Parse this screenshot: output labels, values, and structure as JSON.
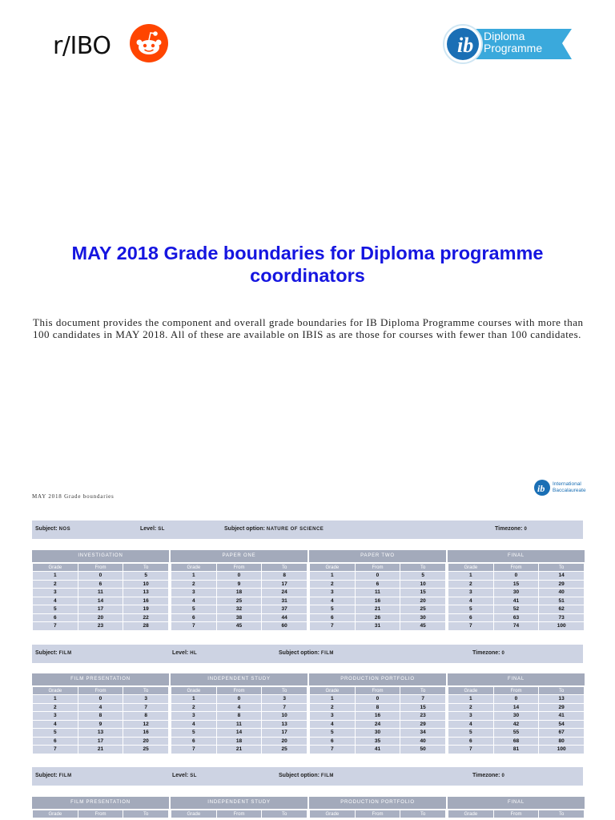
{
  "header": {
    "brand": "r/IBO",
    "brand_icon": "reddit-snoo-icon",
    "logo_text": [
      "Diploma",
      "Programme"
    ],
    "reddit_color": "#ff4500",
    "ib_color": "#1a8fc9"
  },
  "title": "MAY 2018 Grade boundaries for Diploma programme coordinators",
  "intro": "This document provides the component and overall grade boundaries for IB Diploma Programme courses with more than 100 candidates in MAY 2018. All of these are available on IBIS as  are  those for  courses with fewer than 100 candidates.",
  "page_label": "MAY 2018 Grade boundaries",
  "ib_small_logo": [
    "International",
    "Baccalaureate"
  ],
  "labels": {
    "subject": "Subject:",
    "level": "Level:",
    "option": "Subject option:",
    "timezone": "Timezone:",
    "grade": "Grade",
    "from": "From",
    "to": "To"
  },
  "blocks": [
    {
      "subject": "NOS",
      "level": "SL",
      "option": "NATURE OF SCIENCE",
      "timezone": "0",
      "components": [
        {
          "name": "INVESTIGATION",
          "rows": [
            [
              1,
              0,
              5
            ],
            [
              2,
              6,
              10
            ],
            [
              3,
              11,
              13
            ],
            [
              4,
              14,
              16
            ],
            [
              5,
              17,
              19
            ],
            [
              6,
              20,
              22
            ],
            [
              7,
              23,
              28
            ]
          ]
        },
        {
          "name": "PAPER ONE",
          "rows": [
            [
              1,
              0,
              8
            ],
            [
              2,
              9,
              17
            ],
            [
              3,
              18,
              24
            ],
            [
              4,
              25,
              31
            ],
            [
              5,
              32,
              37
            ],
            [
              6,
              38,
              44
            ],
            [
              7,
              45,
              60
            ]
          ]
        },
        {
          "name": "PAPER TWO",
          "rows": [
            [
              1,
              0,
              5
            ],
            [
              2,
              6,
              10
            ],
            [
              3,
              11,
              15
            ],
            [
              4,
              16,
              20
            ],
            [
              5,
              21,
              25
            ],
            [
              6,
              26,
              30
            ],
            [
              7,
              31,
              45
            ]
          ]
        },
        {
          "name": "FINAL",
          "rows": [
            [
              1,
              0,
              14
            ],
            [
              2,
              15,
              29
            ],
            [
              3,
              30,
              40
            ],
            [
              4,
              41,
              51
            ],
            [
              5,
              52,
              62
            ],
            [
              6,
              63,
              73
            ],
            [
              7,
              74,
              100
            ]
          ]
        }
      ]
    },
    {
      "subject": "FILM",
      "level": "HL",
      "option": "FILM",
      "timezone": "0",
      "components": [
        {
          "name": "FILM PRESENTATION",
          "rows": [
            [
              1,
              0,
              3
            ],
            [
              2,
              4,
              7
            ],
            [
              3,
              8,
              8
            ],
            [
              4,
              9,
              12
            ],
            [
              5,
              13,
              16
            ],
            [
              6,
              17,
              20
            ],
            [
              7,
              21,
              25
            ]
          ]
        },
        {
          "name": "INDEPENDENT STUDY",
          "rows": [
            [
              1,
              0,
              3
            ],
            [
              2,
              4,
              7
            ],
            [
              3,
              8,
              10
            ],
            [
              4,
              11,
              13
            ],
            [
              5,
              14,
              17
            ],
            [
              6,
              18,
              20
            ],
            [
              7,
              21,
              25
            ]
          ]
        },
        {
          "name": "PRODUCTION PORTFOLIO",
          "rows": [
            [
              1,
              0,
              7
            ],
            [
              2,
              8,
              15
            ],
            [
              3,
              16,
              23
            ],
            [
              4,
              24,
              29
            ],
            [
              5,
              30,
              34
            ],
            [
              6,
              35,
              40
            ],
            [
              7,
              41,
              50
            ]
          ]
        },
        {
          "name": "FINAL",
          "rows": [
            [
              1,
              0,
              13
            ],
            [
              2,
              14,
              29
            ],
            [
              3,
              30,
              41
            ],
            [
              4,
              42,
              54
            ],
            [
              5,
              55,
              67
            ],
            [
              6,
              68,
              80
            ],
            [
              7,
              81,
              100
            ]
          ]
        }
      ]
    },
    {
      "subject": "FILM",
      "level": "SL",
      "option": "FILM",
      "timezone": "0",
      "components": [
        {
          "name": "FILM PRESENTATION",
          "rows": []
        },
        {
          "name": "INDEPENDENT STUDY",
          "rows": []
        },
        {
          "name": "PRODUCTION PORTFOLIO",
          "rows": []
        },
        {
          "name": "FINAL",
          "rows": []
        }
      ]
    }
  ]
}
